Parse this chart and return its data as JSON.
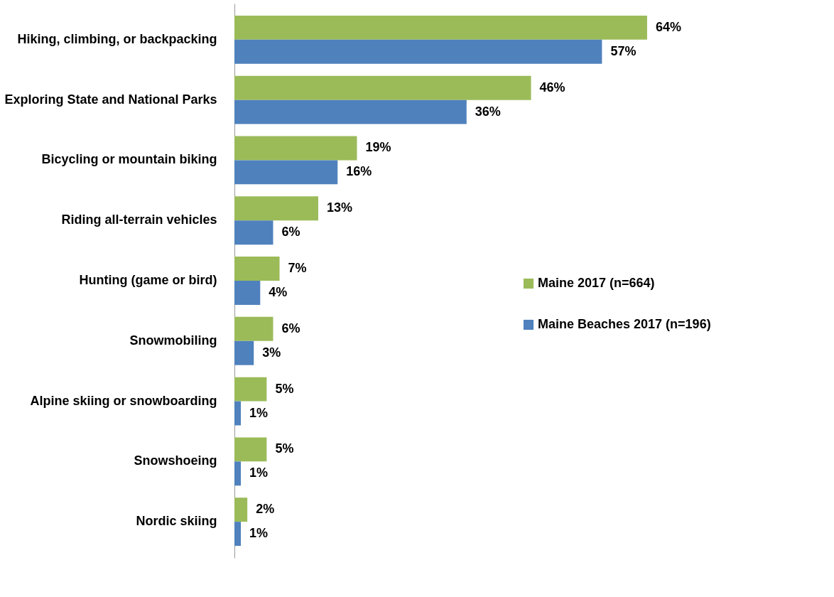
{
  "chart_data": {
    "type": "bar",
    "orientation": "horizontal",
    "categories": [
      "Hiking, climbing, or backpacking",
      "Exploring State and National Parks",
      "Bicycling or mountain biking",
      "Riding all-terrain vehicles",
      "Hunting (game or bird)",
      "Snowmobiling",
      "Alpine skiing or snowboarding",
      "Snowshoeing",
      "Nordic skiing"
    ],
    "series": [
      {
        "name": "Maine 2017 (n=664)",
        "color": "#9bbb59",
        "values": [
          64,
          46,
          19,
          13,
          7,
          6,
          5,
          5,
          2
        ],
        "value_labels": [
          "64%",
          "46%",
          "19%",
          "13%",
          "7%",
          "6%",
          "5%",
          "5%",
          "2%"
        ]
      },
      {
        "name": "Maine Beaches 2017 (n=196)",
        "color": "#4f81bd",
        "values": [
          57,
          36,
          16,
          6,
          4,
          3,
          1,
          1,
          1
        ],
        "value_labels": [
          "57%",
          "36%",
          "16%",
          "6%",
          "4%",
          "3%",
          "1%",
          "1%",
          "1%"
        ]
      }
    ],
    "legend": "right"
  }
}
